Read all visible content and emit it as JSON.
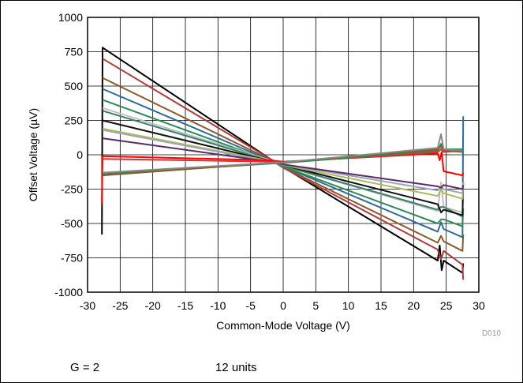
{
  "chart_data": {
    "type": "line",
    "xlabel": "Common-Mode Voltage (V)",
    "ylabel": "Offset Voltage (µV)",
    "xlim": [
      -30,
      30
    ],
    "ylim": [
      -1000,
      1000
    ],
    "x_ticks": [
      "-30",
      "-25",
      "-20",
      "-15",
      "-10",
      "-5",
      "0",
      "5",
      "10",
      "15",
      "20",
      "25",
      "30"
    ],
    "y_ticks": [
      "1000",
      "750",
      "500",
      "250",
      "0",
      "-250",
      "-500",
      "-750",
      "-1000"
    ],
    "grid": true,
    "series": [
      {
        "color": "#000000",
        "points": [
          [
            -27.8,
            -580
          ],
          [
            -27.7,
            780
          ],
          [
            -2,
            -30
          ],
          [
            0,
            -90
          ],
          [
            23.7,
            -770
          ],
          [
            24.0,
            -660
          ],
          [
            24.3,
            -840
          ],
          [
            24.6,
            -770
          ],
          [
            27.5,
            -860
          ],
          [
            27.6,
            -790
          ]
        ]
      },
      {
        "color": "#b03a3a",
        "points": [
          [
            -27.7,
            700
          ],
          [
            -2,
            -30
          ],
          [
            0,
            -95
          ],
          [
            23.7,
            -690
          ],
          [
            24.2,
            -760
          ],
          [
            24.6,
            -700
          ],
          [
            27.5,
            -800
          ],
          [
            27.6,
            -910
          ]
        ]
      },
      {
        "color": "#8a5a2b",
        "points": [
          [
            -27.7,
            560
          ],
          [
            -2,
            -35
          ],
          [
            0,
            -90
          ],
          [
            23.7,
            -640
          ],
          [
            24.2,
            -590
          ],
          [
            24.6,
            -630
          ],
          [
            27.5,
            -700
          ],
          [
            27.6,
            -580
          ]
        ]
      },
      {
        "color": "#2f6b9a",
        "points": [
          [
            -27.7,
            480
          ],
          [
            -2,
            -40
          ],
          [
            0,
            -85
          ],
          [
            23.7,
            -560
          ],
          [
            24.2,
            -490
          ],
          [
            24.6,
            -540
          ],
          [
            27.5,
            -600
          ],
          [
            27.6,
            280
          ]
        ]
      },
      {
        "color": "#2e8b57",
        "points": [
          [
            -27.7,
            400
          ],
          [
            -2,
            -45
          ],
          [
            0,
            -85
          ],
          [
            23.7,
            -500
          ],
          [
            24.2,
            -470
          ],
          [
            24.6,
            -470
          ],
          [
            27.5,
            -520
          ],
          [
            27.6,
            -390
          ]
        ]
      },
      {
        "color": "#c0c0c0",
        "points": [
          [
            -27.7,
            340
          ],
          [
            -2,
            -40
          ],
          [
            0,
            -80
          ],
          [
            23.7,
            -410
          ],
          [
            24.2,
            -200
          ],
          [
            24.6,
            -380
          ],
          [
            27.5,
            -420
          ],
          [
            27.6,
            -200
          ]
        ]
      },
      {
        "color": "#3a7f6a",
        "points": [
          [
            -27.7,
            320
          ],
          [
            -2,
            -45
          ],
          [
            0,
            -80
          ],
          [
            23.7,
            -400
          ],
          [
            24.2,
            -380
          ],
          [
            24.6,
            -380
          ],
          [
            27.5,
            -450
          ]
        ]
      },
      {
        "color": "#111111",
        "points": [
          [
            -27.7,
            250
          ],
          [
            -2,
            -45
          ],
          [
            0,
            -75
          ],
          [
            23.7,
            -360
          ],
          [
            24.2,
            -420
          ],
          [
            24.6,
            -400
          ],
          [
            27.5,
            -440
          ],
          [
            27.6,
            -200
          ]
        ]
      },
      {
        "color": "#b0b85a",
        "points": [
          [
            -27.7,
            190
          ],
          [
            -2,
            -45
          ],
          [
            0,
            -75
          ],
          [
            23.7,
            -300
          ],
          [
            24.2,
            -250
          ],
          [
            24.6,
            -280
          ],
          [
            27.5,
            -320
          ],
          [
            27.6,
            -200
          ]
        ]
      },
      {
        "color": "#9aa7b8",
        "points": [
          [
            -27.7,
            180
          ],
          [
            -2,
            -50
          ],
          [
            0,
            -70
          ],
          [
            23.7,
            -260
          ],
          [
            24.2,
            -230
          ],
          [
            24.6,
            -250
          ],
          [
            27.5,
            -280
          ],
          [
            27.6,
            -200
          ]
        ]
      },
      {
        "color": "#5a2a6a",
        "points": [
          [
            -27.7,
            120
          ],
          [
            -2,
            -50
          ],
          [
            0,
            -70
          ],
          [
            23.7,
            -230
          ],
          [
            24.2,
            -240
          ],
          [
            24.6,
            -220
          ],
          [
            27.5,
            -250
          ],
          [
            27.6,
            -220
          ]
        ]
      },
      {
        "color": "#ff0000",
        "points": [
          [
            -27.8,
            -360
          ],
          [
            -27.7,
            -10
          ],
          [
            -2,
            -40
          ],
          [
            0,
            -50
          ],
          [
            23.7,
            10
          ],
          [
            24.0,
            -40
          ],
          [
            24.3,
            20
          ],
          [
            24.6,
            -120
          ],
          [
            27.5,
            -150
          ],
          [
            27.6,
            -130
          ]
        ]
      },
      {
        "color": "#e03030",
        "points": [
          [
            -27.7,
            -30
          ],
          [
            -2,
            -50
          ],
          [
            0,
            -55
          ],
          [
            23.7,
            20
          ],
          [
            24.2,
            40
          ],
          [
            24.6,
            20
          ],
          [
            27.5,
            30
          ]
        ]
      },
      {
        "color": "#2e8b57",
        "points": [
          [
            -27.7,
            -140
          ],
          [
            -2,
            -65
          ],
          [
            0,
            -60
          ],
          [
            23.7,
            30
          ],
          [
            24.2,
            80
          ],
          [
            24.6,
            40
          ],
          [
            27.5,
            40
          ]
        ]
      },
      {
        "color": "#8a5a2b",
        "points": [
          [
            -27.7,
            -150
          ],
          [
            -2,
            -60
          ],
          [
            0,
            -55
          ],
          [
            23.7,
            40
          ],
          [
            24.2,
            60
          ],
          [
            24.6,
            30
          ],
          [
            27.5,
            20
          ]
        ]
      },
      {
        "color": "#888888",
        "points": [
          [
            -27.7,
            -130
          ],
          [
            -2,
            -60
          ],
          [
            0,
            -55
          ],
          [
            23.7,
            50
          ],
          [
            24.2,
            150
          ],
          [
            24.6,
            40
          ],
          [
            27.5,
            30
          ]
        ]
      }
    ]
  },
  "doc_id": "D010",
  "footnotes": {
    "gain": "G = 2",
    "units": "12 units"
  }
}
